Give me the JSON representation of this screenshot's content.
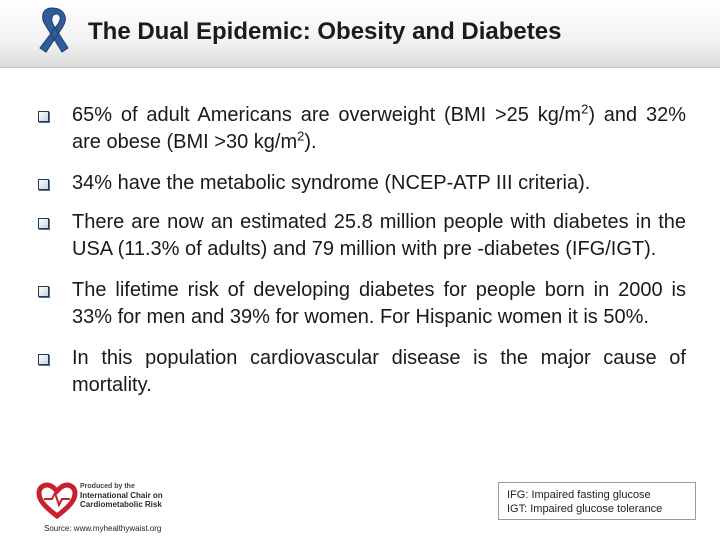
{
  "slide": {
    "title": "The Dual Epidemic: Obesity and Diabetes"
  },
  "bullets": [
    {
      "p1": "65% of adult Americans are overweight (BMI >25 kg/m",
      "sup1": "2",
      "p2": ") and 32% are obese (BMI >30 kg/m",
      "sup2": "2",
      "p3": ")."
    },
    {
      "text": "34% have the metabolic syndrome (NCEP-ATP III criteria)."
    },
    {
      "text": "There are now an estimated 25.8 million people with diabetes in the USA (11.3% of adults) and 79 million with pre -diabetes (IFG/IGT)."
    },
    {
      "text": "The lifetime risk of developing diabetes for people born in 2000 is 33% for men and 39% for women. For Hispanic women it is 50%."
    },
    {
      "text": "In this population cardiovascular disease is the major cause of mortality."
    }
  ],
  "footer": {
    "logo_line1": "Produced by the",
    "logo_line2": "International Chair on",
    "logo_line3": "Cardiometabolic Risk",
    "source": "Source: www.myhealthywaist.org"
  },
  "legend": {
    "line1": "IFG: Impaired fasting glucose",
    "line2": "IGT: Impaired glucose tolerance"
  },
  "colors": {
    "ribbon": "#2f5d9c",
    "logo_heart": "#c8202f",
    "bullet_border": "#1f3b5c"
  },
  "icons": {
    "header": "awareness-ribbon-icon",
    "bullet": "square-bullet-icon",
    "logo": "heart-logo-icon"
  }
}
